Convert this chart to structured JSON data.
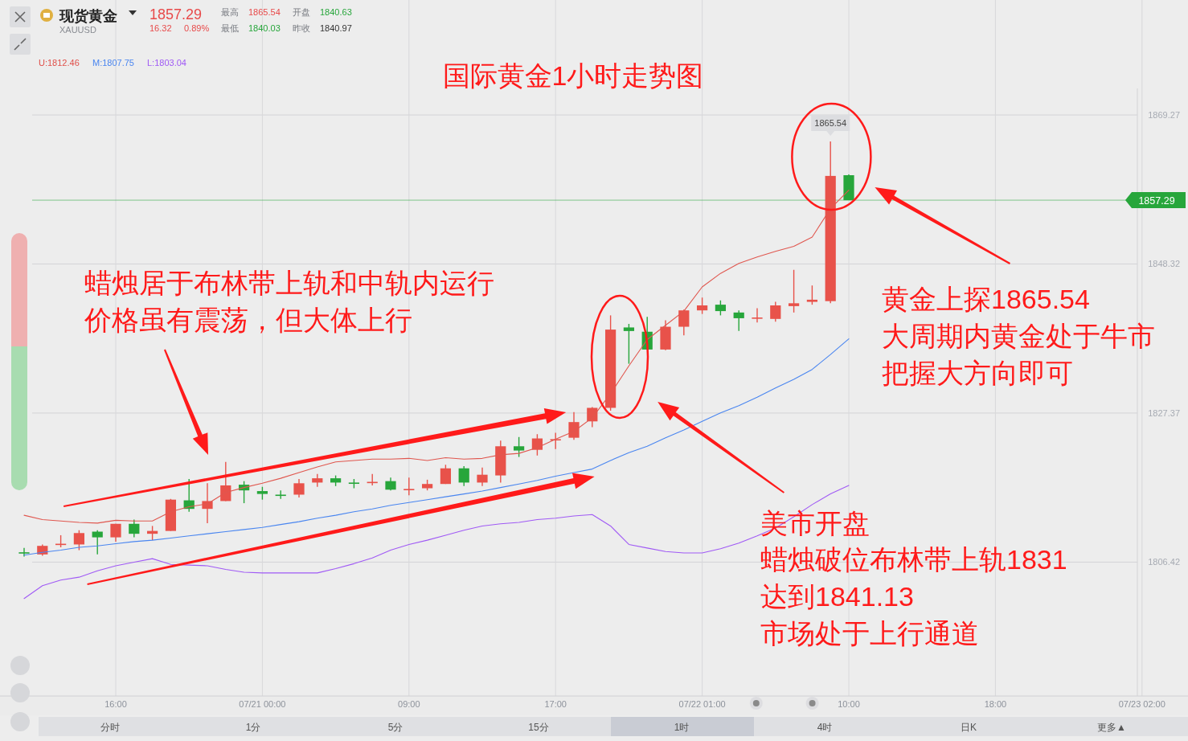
{
  "chart_data": {
    "type": "candlestick",
    "title": "国际黄金1小时走势图",
    "categories": [
      null,
      null,
      null,
      null,
      null,
      "16:00",
      null,
      null,
      null,
      null,
      null,
      null,
      null,
      "07/21 00:00",
      null,
      null,
      null,
      null,
      null,
      null,
      null,
      "09:00",
      null,
      null,
      null,
      null,
      null,
      null,
      null,
      "17:00",
      null,
      null,
      null,
      null,
      null,
      null,
      null,
      "07/22 01:00",
      null,
      null,
      null,
      null,
      null,
      null,
      null,
      "10:00",
      null,
      null,
      null,
      null,
      null,
      null,
      null,
      "18:00",
      null,
      null,
      null,
      null,
      null,
      null,
      null,
      "07/23 02:00"
    ],
    "ohlc": [
      [
        1807.8,
        1808.4,
        1807.2,
        1807.8
      ],
      [
        1807.5,
        1808.9,
        1807.3,
        1808.7
      ],
      [
        1809.0,
        1810.2,
        1808.5,
        1809.0
      ],
      [
        1808.9,
        1810.9,
        1808.1,
        1810.5
      ],
      [
        1810.7,
        1810.9,
        1807.5,
        1809.9
      ],
      [
        1809.9,
        1811.8,
        1809.3,
        1811.8
      ],
      [
        1811.8,
        1812.4,
        1809.9,
        1810.4
      ],
      [
        1810.4,
        1811.5,
        1809.5,
        1810.8
      ],
      [
        1810.8,
        1815.3,
        1810.8,
        1815.2
      ],
      [
        1815.1,
        1818.1,
        1813.5,
        1813.9
      ],
      [
        1813.9,
        1817.5,
        1811.9,
        1815.0
      ],
      [
        1815.0,
        1820.5,
        1815.0,
        1817.2
      ],
      [
        1817.3,
        1817.8,
        1814.7,
        1816.5
      ],
      [
        1816.4,
        1817.0,
        1815.2,
        1816.0
      ],
      [
        1815.9,
        1816.5,
        1815.3,
        1815.9
      ],
      [
        1815.9,
        1818.1,
        1815.5,
        1817.5
      ],
      [
        1817.6,
        1818.8,
        1817.0,
        1818.2
      ],
      [
        1818.2,
        1818.6,
        1817.1,
        1817.6
      ],
      [
        1817.6,
        1818.1,
        1816.8,
        1817.6
      ],
      [
        1817.7,
        1818.8,
        1817.2,
        1817.7
      ],
      [
        1817.8,
        1818.3,
        1816.5,
        1816.6
      ],
      [
        1816.7,
        1818.3,
        1815.8,
        1816.7
      ],
      [
        1816.8,
        1818.0,
        1816.5,
        1817.4
      ],
      [
        1817.4,
        1820.1,
        1817.4,
        1819.6
      ],
      [
        1819.6,
        1819.9,
        1817.1,
        1817.6
      ],
      [
        1817.6,
        1819.7,
        1817.1,
        1818.7
      ],
      [
        1818.6,
        1823.5,
        1817.6,
        1822.7
      ],
      [
        1822.7,
        1824.0,
        1821.2,
        1822.1
      ],
      [
        1822.2,
        1824.4,
        1821.4,
        1823.8
      ],
      [
        1823.7,
        1824.6,
        1822.3,
        1823.7
      ],
      [
        1823.9,
        1827.5,
        1823.6,
        1826.1
      ],
      [
        1826.2,
        1828.2,
        1825.4,
        1828.1
      ],
      [
        1828.1,
        1841.1,
        1827.7,
        1839.1
      ],
      [
        1839.4,
        1839.9,
        1834.3,
        1838.9
      ],
      [
        1838.8,
        1840.9,
        1836.3,
        1836.3
      ],
      [
        1836.3,
        1840.4,
        1836.2,
        1839.5
      ],
      [
        1839.5,
        1841.9,
        1838.3,
        1841.8
      ],
      [
        1841.8,
        1843.6,
        1841.3,
        1842.5
      ],
      [
        1842.6,
        1843.2,
        1841.1,
        1841.7
      ],
      [
        1841.5,
        1841.8,
        1838.9,
        1840.7
      ],
      [
        1840.8,
        1842.1,
        1840.1,
        1840.8
      ],
      [
        1840.6,
        1843.0,
        1840.2,
        1842.5
      ],
      [
        1842.4,
        1847.5,
        1841.5,
        1842.8
      ],
      [
        1843.0,
        1845.3,
        1842.6,
        1843.3
      ],
      [
        1843.1,
        1865.54,
        1842.8,
        1860.7
      ],
      [
        1860.8,
        1860.9,
        1857.29,
        1857.29
      ],
      null,
      null,
      null,
      null,
      null,
      null,
      null,
      null,
      null,
      null,
      null,
      null,
      null,
      null,
      null,
      null
    ],
    "colors": [
      "#27a63b",
      "#e8524a",
      "#e8524a",
      "#e8524a",
      "#27a63b",
      "#e8524a",
      "#27a63b",
      "#e8524a",
      "#e8524a",
      "#27a63b",
      "#e8524a",
      "#e8524a",
      "#27a63b",
      "#27a63b",
      "#27a63b",
      "#e8524a",
      "#e8524a",
      "#27a63b",
      "#27a63b",
      "#e8524a",
      "#27a63b",
      "#e8524a",
      "#e8524a",
      "#e8524a",
      "#27a63b",
      "#e8524a",
      "#e8524a",
      "#27a63b",
      "#e8524a",
      "#e8524a",
      "#e8524a",
      "#e8524a",
      "#e8524a",
      "#27a63b",
      "#27a63b",
      "#e8524a",
      "#e8524a",
      "#e8524a",
      "#27a63b",
      "#27a63b",
      "#e8524a",
      "#e8524a",
      "#e8524a",
      "#e8524a",
      "#e8524a",
      "#27a63b",
      null,
      null,
      null,
      null,
      null,
      null,
      null,
      null,
      null,
      null,
      null,
      null,
      null,
      null,
      null,
      null
    ],
    "series": [
      {
        "type": "line",
        "color": "#e0574f",
        "values": [
          1813.0,
          1812.4,
          1812.2,
          1812.0,
          1811.9,
          1812.3,
          1812.2,
          1812.2,
          1813.5,
          1814.2,
          1814.6,
          1816.2,
          1816.9,
          1817.5,
          1818.2,
          1819.0,
          1819.8,
          1820.5,
          1820.7,
          1820.9,
          1820.9,
          1821.0,
          1820.7,
          1821.1,
          1820.9,
          1821.0,
          1821.5,
          1821.7,
          1822.5,
          1823.7,
          1824.8,
          1826.7,
          1830.1,
          1834.0,
          1837.7,
          1839.7,
          1841.7,
          1845.1,
          1847.0,
          1848.4,
          1849.3,
          1850.1,
          1850.8,
          1852.1,
          1856.1,
          1858.7,
          null,
          null,
          null,
          null,
          null,
          null,
          null,
          null,
          null,
          null,
          null,
          null,
          null,
          null,
          null,
          null
        ]
      },
      {
        "type": "line",
        "color": "#4a86f0",
        "values": [
          1807.4,
          1807.8,
          1808.1,
          1808.5,
          1808.7,
          1809.0,
          1809.3,
          1809.5,
          1809.8,
          1810.1,
          1810.4,
          1810.7,
          1811.0,
          1811.3,
          1811.7,
          1812.1,
          1812.6,
          1813.0,
          1813.5,
          1813.9,
          1814.4,
          1814.8,
          1815.2,
          1815.6,
          1816.0,
          1816.4,
          1816.9,
          1817.4,
          1817.9,
          1818.5,
          1819.0,
          1819.5,
          1820.7,
          1821.8,
          1822.7,
          1823.9,
          1825.0,
          1826.2,
          1827.4,
          1828.4,
          1829.6,
          1830.9,
          1832.1,
          1833.5,
          1835.6,
          1837.8,
          null,
          null,
          null,
          null,
          null,
          null,
          null,
          null,
          null,
          null,
          null,
          null,
          null,
          null,
          null,
          null
        ]
      },
      {
        "type": "line",
        "color": "#a05af5",
        "values": [
          1801.3,
          1803.1,
          1803.9,
          1804.3,
          1805.2,
          1805.9,
          1806.4,
          1806.9,
          1806.1,
          1806.0,
          1805.9,
          1805.4,
          1805.0,
          1804.9,
          1804.9,
          1804.9,
          1804.9,
          1805.5,
          1806.2,
          1807.0,
          1808.1,
          1808.9,
          1809.5,
          1810.2,
          1810.9,
          1811.5,
          1811.8,
          1812.0,
          1812.4,
          1812.6,
          1812.9,
          1813.1,
          1811.5,
          1808.9,
          1808.4,
          1807.9,
          1807.7,
          1807.7,
          1808.3,
          1809.1,
          1810.1,
          1811.2,
          1812.8,
          1814.5,
          1816.0,
          1817.2,
          null,
          null,
          null,
          null,
          null,
          null,
          null,
          null,
          null,
          null,
          null,
          null,
          null,
          null,
          null,
          null
        ]
      }
    ],
    "ylim": [
      1787.6,
      1873.0
    ],
    "yticks": [
      1806.42,
      1827.37,
      1848.32,
      1869.27
    ],
    "grid": true,
    "ref_lines": [
      {
        "axis": "y",
        "value": 1857.29,
        "label": "1857.29",
        "color": "#27a63b"
      }
    ],
    "annotations": [
      "现货黄金",
      "XAUUSD",
      "1857.29",
      "16.32",
      "0.89%",
      "最高",
      "1865.54",
      "开盘",
      "1840.63",
      "最低",
      "1840.03",
      "昨收",
      "1840.97",
      "U:1812.46",
      "M:1807.75",
      "L:1803.04",
      "蜡烛居于布林带上轨和中轨内运行",
      "价格虽有震荡，但大体上行",
      "黄金上探1865.54",
      "大周期内黄金处于牛市",
      "把握大方向即可",
      "美市开盘",
      "蜡烛破位布林带上轨1831",
      "达到1841.13",
      "市场处于上行通道",
      {
        "text": "1865.54",
        "y": 1865.54
      },
      "分时",
      "1分",
      "5分",
      "15分",
      "1时",
      "4时",
      "日K",
      "更多▲"
    ]
  }
}
